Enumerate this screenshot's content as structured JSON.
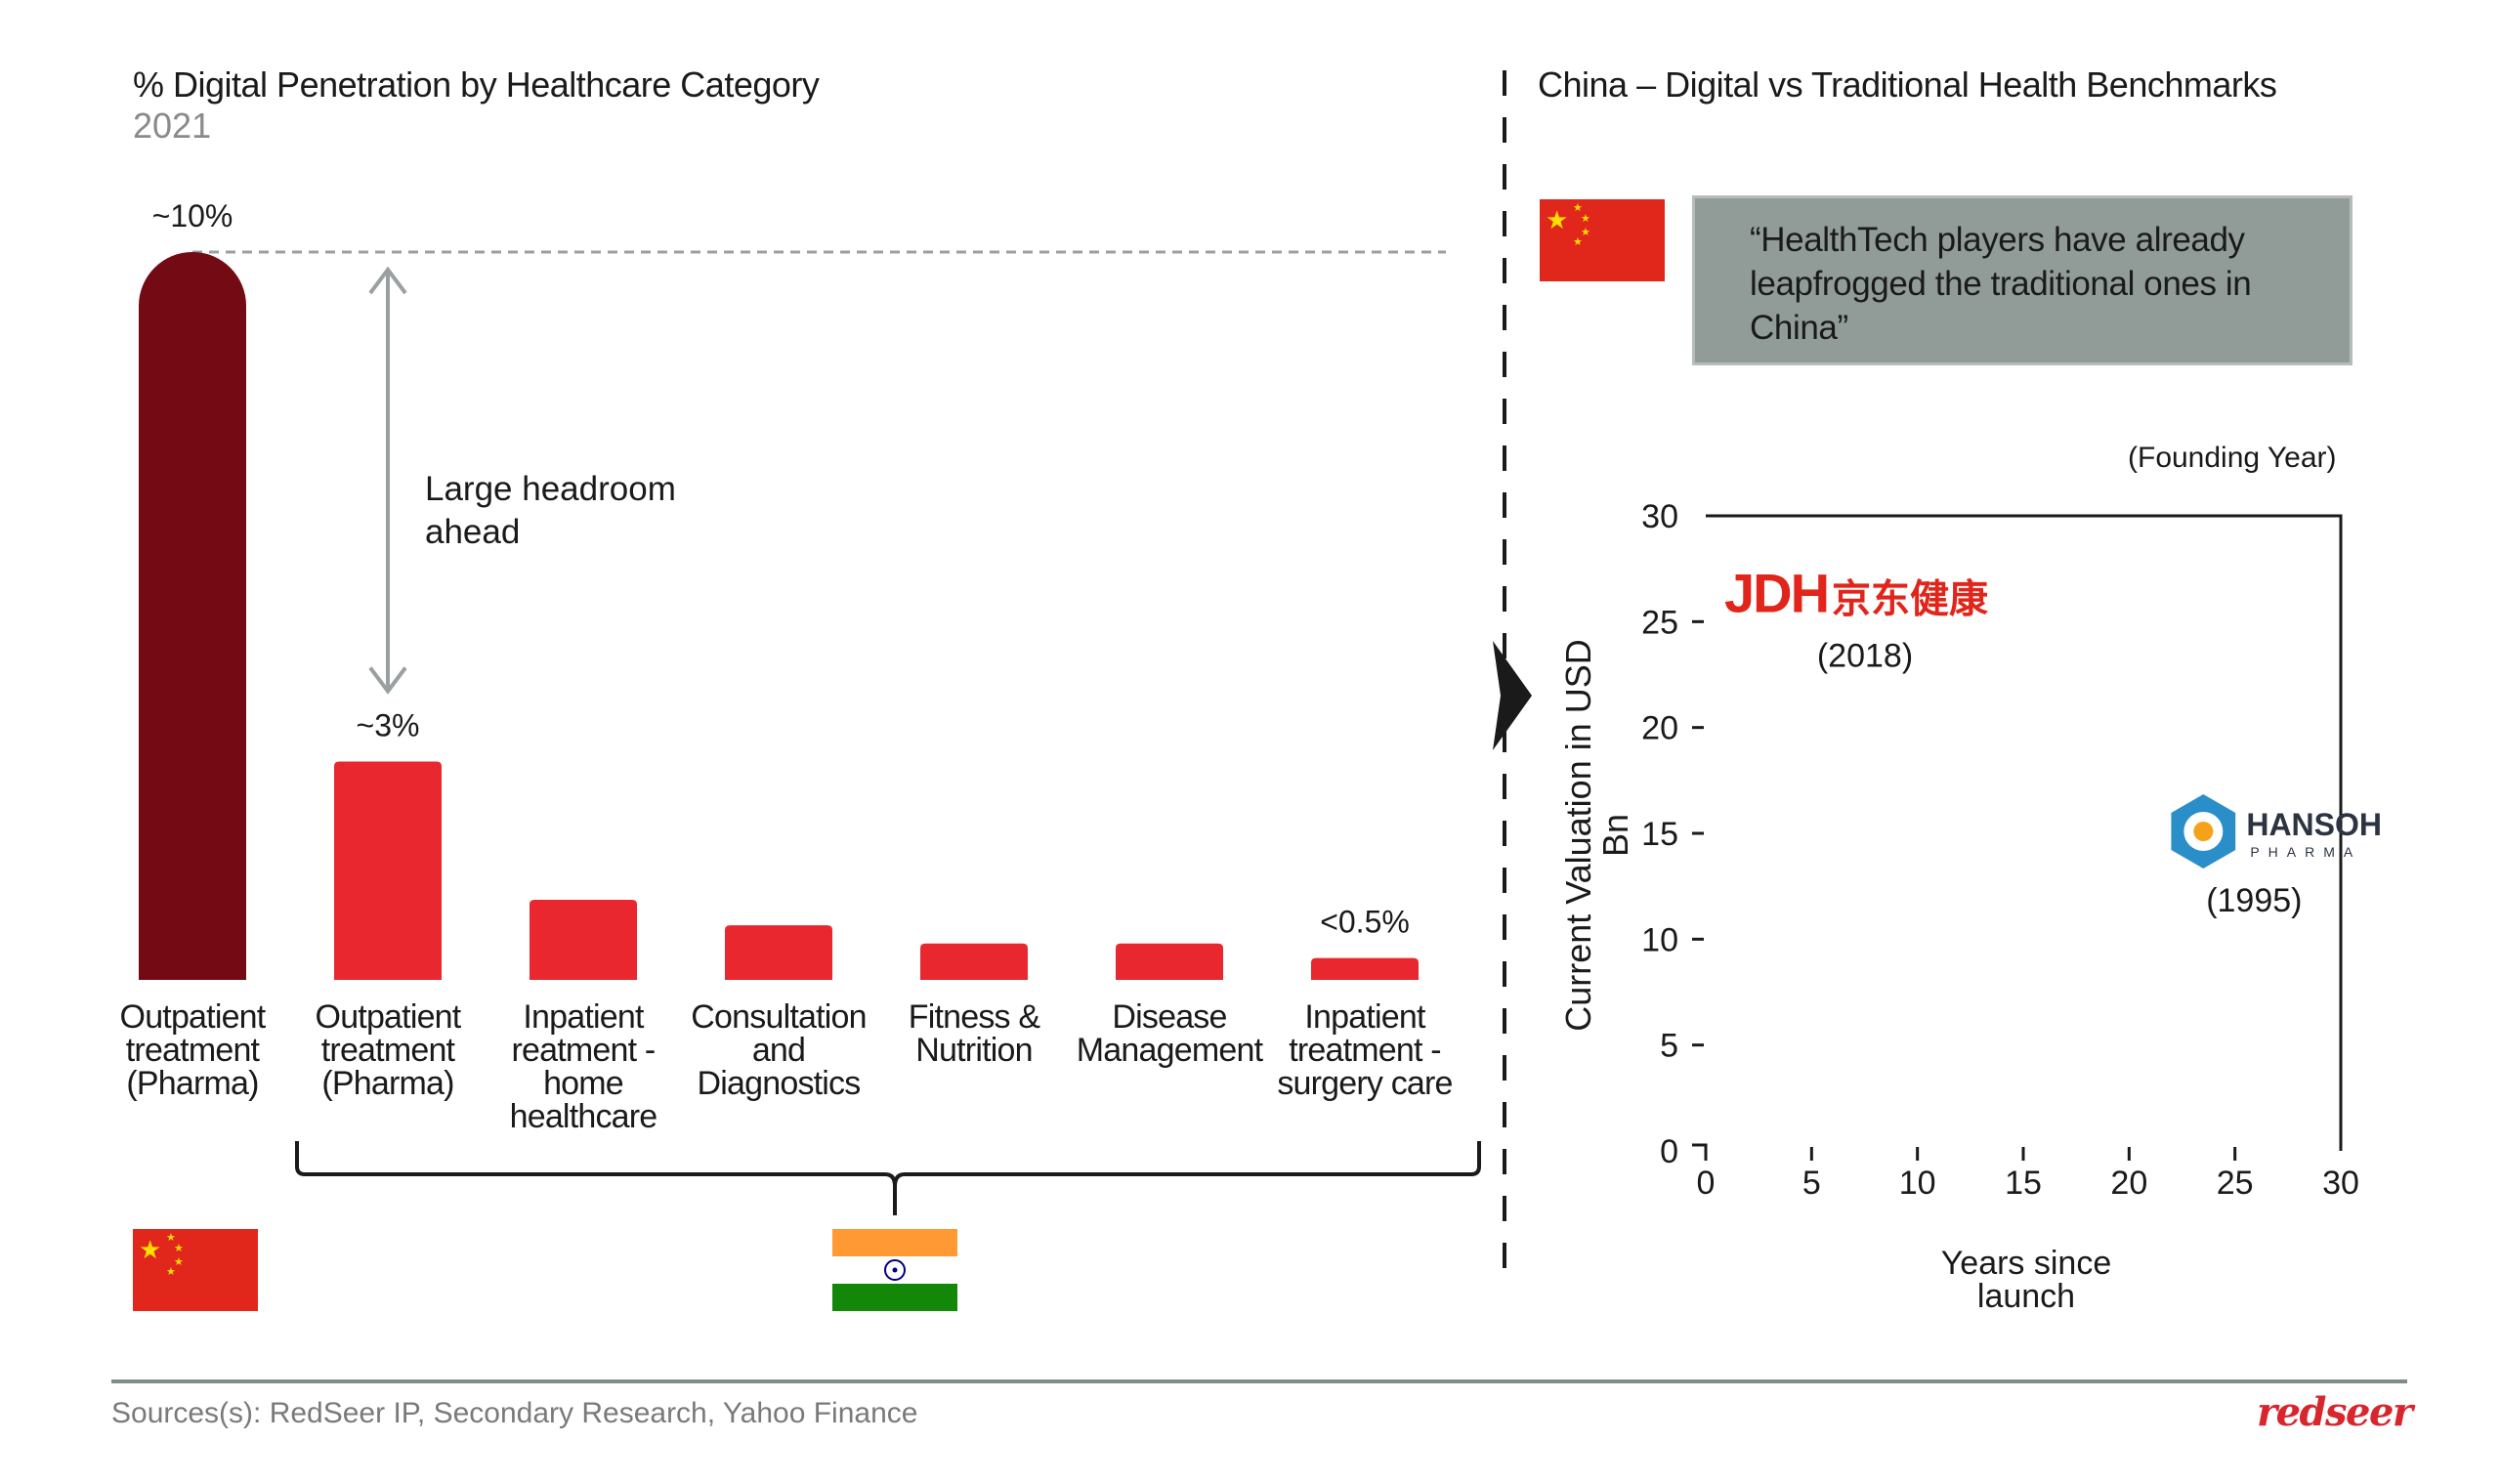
{
  "left_panel": {
    "title": "% Digital Penetration by Healthcare Category",
    "subtitle": "2021",
    "headroom_annotation": [
      "Large headroom",
      "ahead"
    ]
  },
  "right_panel": {
    "title": "China – Digital vs Traditional Health Benchmarks",
    "quote": "“HealthTech players have already leapfrogged the traditional ones in China”",
    "founding_year_note": "(Founding Year)"
  },
  "footer": {
    "sources": "Sources(s): RedSeer IP, Secondary Research, Yahoo Finance",
    "brand_logo": "redseer"
  },
  "colors": {
    "china_bar": "#730a14",
    "india_bar": "#e8272e",
    "quote_box": "#919c98",
    "axis": "#1a1a1a",
    "guide": "#9aa0a0"
  },
  "flags": [
    {
      "country": "China",
      "icon": "china-flag"
    },
    {
      "country": "India",
      "icon": "india-flag"
    }
  ],
  "chart_data": [
    {
      "type": "bar",
      "title": "% Digital Penetration by Healthcare Category",
      "subtitle": "2021",
      "categories": [
        [
          "Outpatient",
          "treatment",
          "(Pharma)"
        ],
        [
          "Outpatient",
          "treatment",
          "(Pharma)"
        ],
        [
          "Inpatient",
          "reatment -",
          "home",
          "healthcare"
        ],
        [
          "Consultation",
          "and",
          "Diagnostics"
        ],
        [
          "Fitness &",
          "Nutrition"
        ],
        [
          "Disease",
          "Management"
        ],
        [
          "Inpatient",
          "treatment -",
          "surgery care"
        ]
      ],
      "values": [
        10,
        3,
        1.1,
        0.75,
        0.5,
        0.5,
        0.3
      ],
      "data_labels": [
        "~10%",
        "~3%",
        "",
        "",
        "",
        "",
        "<0.5%"
      ],
      "groups": [
        {
          "country": "China",
          "bars": [
            0
          ]
        },
        {
          "country": "India",
          "bars": [
            1,
            2,
            3,
            4,
            5,
            6
          ]
        }
      ],
      "ylim": [
        0,
        10
      ]
    },
    {
      "type": "scatter",
      "ylabel": "Current Valuation in USD Bn",
      "xlabel": "Years since launch",
      "xlim": [
        0,
        30
      ],
      "ylim": [
        0,
        30
      ],
      "xticks": [
        "0",
        "5",
        "10",
        "15",
        "20",
        "25",
        "30"
      ],
      "yticks": [
        "0",
        "5",
        "10",
        "15",
        "20",
        "25",
        "30"
      ],
      "points": [
        {
          "name": "JDH 京东健康",
          "logo_text": "JDH",
          "logo_cn": "京东健康",
          "year_label": "(2018)",
          "x": 3,
          "y": 26
        },
        {
          "name": "HANSOH PHARMA",
          "logo_text": "HANSOH",
          "logo_sub": "PHARMA",
          "year_label": "(1995)",
          "x": 26,
          "y": 15
        }
      ]
    }
  ]
}
